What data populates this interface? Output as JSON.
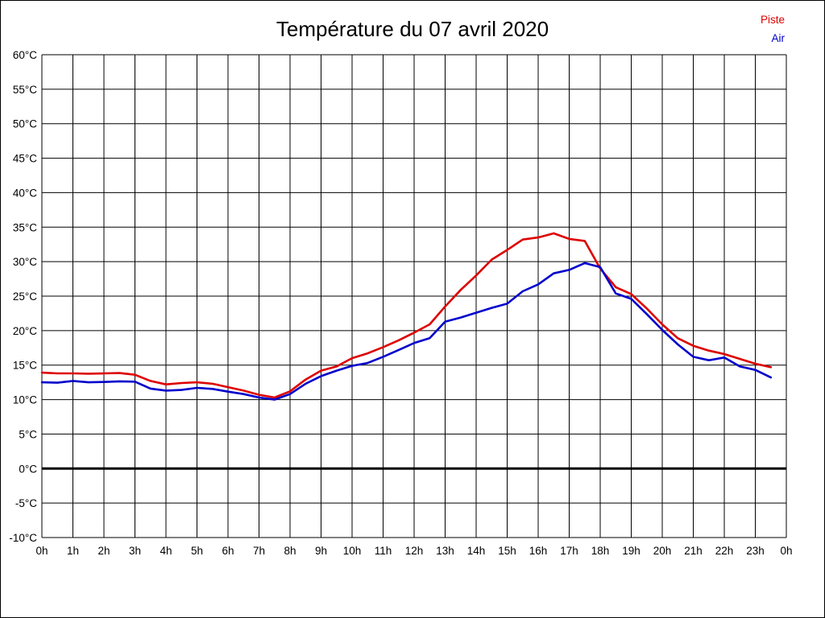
{
  "chart_data": {
    "type": "line",
    "title": "Température du 07 avril 2020",
    "xlabel": "",
    "ylabel": "",
    "xlim": [
      0,
      24
    ],
    "ylim": [
      -10,
      60
    ],
    "y_step": 5,
    "grid": "on",
    "legend_position": "top-right",
    "zero_line": {
      "value": 0,
      "color": "#000000",
      "thick": true
    },
    "grid_color": "#000000",
    "x_tick_labels": [
      "0h",
      "1h",
      "2h",
      "3h",
      "4h",
      "5h",
      "6h",
      "7h",
      "8h",
      "9h",
      "10h",
      "11h",
      "12h",
      "13h",
      "14h",
      "15h",
      "16h",
      "17h",
      "18h",
      "19h",
      "20h",
      "21h",
      "22h",
      "23h",
      "0h"
    ],
    "y_tick_labels": [
      "60°C",
      "55°C",
      "50°C",
      "45°C",
      "40°C",
      "35°C",
      "30°C",
      "25°C",
      "20°C",
      "15°C",
      "10°C",
      "5°C",
      "0°C",
      "-5°C",
      "-10°C"
    ],
    "y_tick_values": [
      60,
      55,
      50,
      45,
      40,
      35,
      30,
      25,
      20,
      15,
      10,
      5,
      0,
      -5,
      -10
    ],
    "x_hours": [
      0,
      0.5,
      1,
      1.5,
      2,
      2.5,
      3,
      3.5,
      4,
      4.5,
      5,
      5.5,
      6,
      6.5,
      7,
      7.5,
      8,
      8.5,
      9,
      9.5,
      10,
      10.5,
      11,
      11.5,
      12,
      12.5,
      13,
      13.5,
      14,
      14.5,
      15,
      15.5,
      16,
      16.5,
      17,
      17.5,
      18,
      18.5,
      19,
      19.5,
      20,
      20.5,
      21,
      21.5,
      22,
      22.5,
      23,
      23.5
    ],
    "series": [
      {
        "name": "Piste",
        "color": "#dd0000",
        "values": [
          13.9,
          13.8,
          13.8,
          13.75,
          13.8,
          13.85,
          13.6,
          12.7,
          12.2,
          12.4,
          12.5,
          12.3,
          11.8,
          11.3,
          10.7,
          10.3,
          11.2,
          12.9,
          14.2,
          14.8,
          16.0,
          16.7,
          17.6,
          18.6,
          19.7,
          20.9,
          23.5,
          25.9,
          28.0,
          30.3,
          31.7,
          33.2,
          33.5,
          34.1,
          33.3,
          33.0,
          29.0,
          26.3,
          25.3,
          23.2,
          20.9,
          18.9,
          17.8,
          17.1,
          16.6,
          15.9,
          15.2,
          14.7
        ]
      },
      {
        "name": "Air",
        "color": "#0000cc",
        "values": [
          12.5,
          12.45,
          12.7,
          12.5,
          12.55,
          12.65,
          12.6,
          11.6,
          11.3,
          11.4,
          11.7,
          11.55,
          11.15,
          10.8,
          10.3,
          10.0,
          10.8,
          12.3,
          13.4,
          14.2,
          14.9,
          15.3,
          16.2,
          17.2,
          18.2,
          18.9,
          21.3,
          21.9,
          22.6,
          23.3,
          23.9,
          25.7,
          26.7,
          28.3,
          28.8,
          29.8,
          29.2,
          25.4,
          24.6,
          22.4,
          20.1,
          18.0,
          16.2,
          15.7,
          16.1,
          14.8,
          14.3,
          13.2
        ]
      }
    ]
  }
}
